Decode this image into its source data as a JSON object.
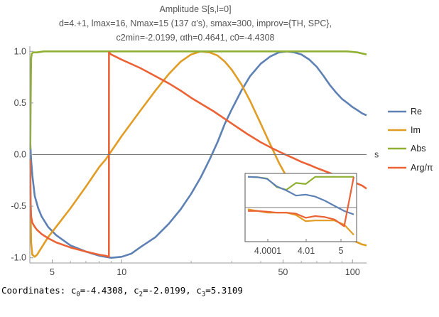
{
  "chart_data": {
    "type": "line",
    "title_lines": [
      "Amplitude S[s,l=0]",
      "d=4.+1, lmax=16, Nmax=15 (137 α's), smax=300, improv={TH, SPC},",
      "c2min=-2.0199, αth=0.4641, c0=-4.4308"
    ],
    "xlabel": "s",
    "xscale": "log",
    "xlim": [
      4,
      115
    ],
    "ylim": [
      -1.05,
      1.05
    ],
    "x_ticks": [
      "5",
      "10",
      "50",
      "100"
    ],
    "y_ticks": [
      "1.0",
      "0.5",
      "0.0",
      "-0.5",
      "-1.0"
    ],
    "legend_position": "right",
    "series": [
      {
        "name": "Re",
        "color": "#5e81b5",
        "x": [
          4.02,
          4.05,
          4.1,
          4.2,
          4.35,
          4.5,
          4.8,
          5.2,
          6,
          7,
          8,
          9,
          10,
          11,
          12,
          14,
          16,
          18,
          20,
          22,
          24,
          26,
          28,
          30,
          33,
          36,
          40,
          44,
          48,
          52,
          56,
          60,
          65,
          70,
          75,
          80,
          85,
          90,
          95,
          100,
          105,
          110,
          115
        ],
        "y": [
          0.1,
          -0.05,
          -0.2,
          -0.4,
          -0.52,
          -0.6,
          -0.7,
          -0.78,
          -0.88,
          -0.94,
          -0.98,
          -1.0,
          -0.99,
          -0.96,
          -0.9,
          -0.8,
          -0.67,
          -0.53,
          -0.38,
          -0.22,
          -0.05,
          0.12,
          0.3,
          0.44,
          0.62,
          0.76,
          0.88,
          0.95,
          0.99,
          1.0,
          0.99,
          0.97,
          0.92,
          0.85,
          0.76,
          0.67,
          0.6,
          0.54,
          0.5,
          0.46,
          0.43,
          0.4,
          0.38
        ]
      },
      {
        "name": "Im",
        "color": "#e19c24",
        "x": [
          4.02,
          4.05,
          4.1,
          4.15,
          4.2,
          4.3,
          4.5,
          4.8,
          5.2,
          6,
          7,
          8,
          8.5,
          9,
          10,
          12,
          14,
          16,
          18,
          20,
          22,
          24,
          26,
          28,
          30,
          33,
          36,
          40,
          44,
          48,
          52,
          56,
          60,
          65,
          70,
          75,
          80,
          85,
          90,
          95,
          100,
          105,
          110,
          115
        ],
        "y": [
          -0.3,
          -0.85,
          -0.97,
          -0.98,
          -0.99,
          -0.97,
          -0.9,
          -0.8,
          -0.7,
          -0.52,
          -0.31,
          -0.12,
          -0.05,
          0.03,
          0.18,
          0.42,
          0.62,
          0.78,
          0.9,
          0.97,
          1.0,
          0.99,
          0.96,
          0.9,
          0.82,
          0.68,
          0.52,
          0.3,
          0.1,
          -0.08,
          -0.22,
          -0.33,
          -0.42,
          -0.51,
          -0.58,
          -0.64,
          -0.69,
          -0.73,
          -0.77,
          -0.8,
          -0.83,
          -0.85,
          -0.87,
          -0.88
        ]
      },
      {
        "name": "Abs",
        "color": "#8fb032",
        "x": [
          4.02,
          4.03,
          4.05,
          4.08,
          4.15,
          4.3,
          4.6,
          5,
          10,
          20,
          40,
          60,
          80,
          95,
          100,
          105,
          110,
          115
        ],
        "y": [
          0.05,
          0.45,
          0.93,
          0.98,
          0.99,
          0.99,
          1.0,
          1.0,
          1.0,
          1.0,
          1.0,
          1.0,
          1.0,
          1.0,
          0.995,
          0.99,
          0.98,
          0.97
        ]
      },
      {
        "name": "Arg/π",
        "color": "#eb6235",
        "x": [
          4.02,
          4.03,
          4.05,
          4.1,
          4.2,
          4.3,
          4.5,
          4.8,
          5.2,
          6,
          7,
          8,
          8.5,
          8.8,
          8.81,
          9,
          10,
          12,
          14,
          16,
          18,
          20,
          25,
          30,
          35,
          40,
          45,
          50,
          55,
          60,
          65,
          70,
          80,
          90,
          100,
          110,
          115
        ],
        "y": [
          -0.05,
          -0.45,
          -0.6,
          -0.66,
          -0.7,
          -0.73,
          -0.77,
          -0.81,
          -0.85,
          -0.9,
          -0.94,
          -0.97,
          -0.98,
          -0.99,
          0.99,
          0.97,
          0.92,
          0.84,
          0.76,
          0.69,
          0.62,
          0.55,
          0.42,
          0.3,
          0.2,
          0.12,
          0.06,
          0.01,
          -0.03,
          -0.07,
          -0.1,
          -0.13,
          -0.18,
          -0.22,
          -0.26,
          -0.3,
          -0.33
        ]
      }
    ],
    "inset": {
      "x_ticks": [
        "4.0001",
        "4.01",
        "5"
      ],
      "series": {
        "Abs": [
          0.9,
          0.89,
          0.85,
          0.6,
          0.52,
          0.72,
          0.69,
          0.9,
          0.9,
          0.9,
          0.9,
          0.9
        ],
        "Re": [
          0.9,
          0.89,
          0.84,
          0.62,
          0.5,
          0.35,
          0.38,
          0.32,
          0.2,
          0.05,
          -0.1,
          -0.2
        ],
        "Im": [
          -0.05,
          -0.1,
          -0.15,
          -0.15,
          -0.15,
          -0.22,
          -0.4,
          -0.38,
          -0.38,
          -0.38,
          -0.5,
          -0.8
        ],
        "Arg/π": [
          -0.1,
          -0.1,
          -0.12,
          -0.15,
          -0.15,
          -0.18,
          -0.3,
          -0.25,
          -0.28,
          -0.35,
          -0.55,
          0.9
        ]
      }
    }
  },
  "coordinates": {
    "label": "Coordinates: ",
    "c0_value": "=-4.4308",
    "c2_value": "=-2.0199",
    "c3_value": "=5.3109"
  }
}
